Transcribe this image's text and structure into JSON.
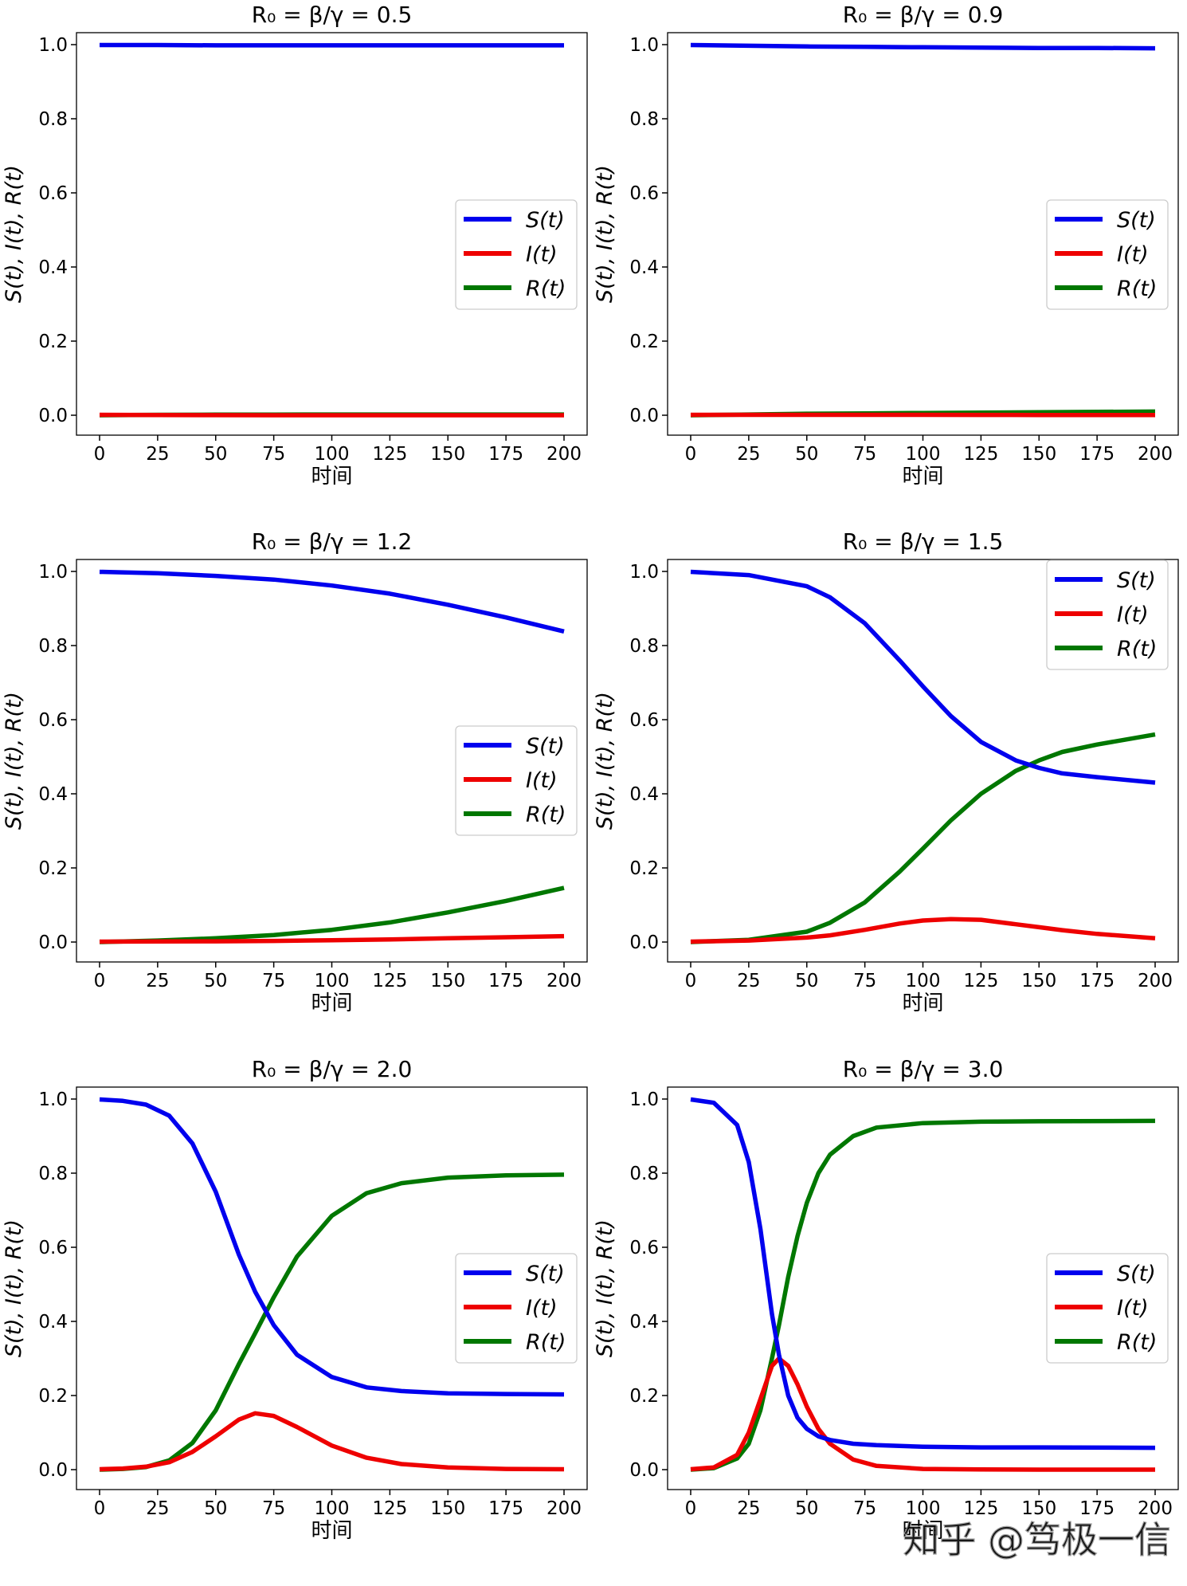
{
  "figure": {
    "xlabel": "时间",
    "ylabel": "S(t), I(t), R(t)",
    "watermark": "知乎 @笃极一信"
  },
  "colors": {
    "S": "#0000ee",
    "I": "#ee0000",
    "R": "#007700"
  },
  "chart_data": [
    {
      "type": "line",
      "title": "R₀ = β/γ = 0.5",
      "xlim": [
        0,
        200
      ],
      "ylim": [
        0,
        1.0
      ],
      "xticks": [
        "0",
        "25",
        "50",
        "75",
        "100",
        "125",
        "150",
        "175",
        "200"
      ],
      "yticks": [
        "0.0",
        "0.2",
        "0.4",
        "0.6",
        "0.8",
        "1.0"
      ],
      "legend_position": "center-right",
      "x": [
        0,
        25,
        50,
        75,
        100,
        125,
        150,
        175,
        200
      ],
      "series": [
        {
          "name": "S(t)",
          "key": "S",
          "values": [
            0.999,
            0.999,
            0.998,
            0.998,
            0.998,
            0.998,
            0.998,
            0.998,
            0.998
          ]
        },
        {
          "name": "I(t)",
          "key": "I",
          "values": [
            0.001,
            0.0005,
            0.0002,
            0.0001,
            0.0,
            0.0,
            0.0,
            0.0,
            0.0
          ]
        },
        {
          "name": "R(t)",
          "key": "R",
          "values": [
            0.0,
            0.001,
            0.0015,
            0.0018,
            0.0019,
            0.002,
            0.002,
            0.002,
            0.002
          ]
        }
      ]
    },
    {
      "type": "line",
      "title": "R₀ = β/γ = 0.9",
      "xlim": [
        0,
        200
      ],
      "ylim": [
        0,
        1.0
      ],
      "xticks": [
        "0",
        "25",
        "50",
        "75",
        "100",
        "125",
        "150",
        "175",
        "200"
      ],
      "yticks": [
        "0.0",
        "0.2",
        "0.4",
        "0.6",
        "0.8",
        "1.0"
      ],
      "legend_position": "center-right",
      "x": [
        0,
        25,
        50,
        75,
        100,
        125,
        150,
        175,
        200
      ],
      "series": [
        {
          "name": "S(t)",
          "key": "S",
          "values": [
            0.999,
            0.997,
            0.995,
            0.994,
            0.993,
            0.992,
            0.991,
            0.991,
            0.99
          ]
        },
        {
          "name": "I(t)",
          "key": "I",
          "values": [
            0.001,
            0.001,
            0.001,
            0.001,
            0.001,
            0.0008,
            0.0007,
            0.0006,
            0.0005
          ]
        },
        {
          "name": "R(t)",
          "key": "R",
          "values": [
            0.0,
            0.002,
            0.004,
            0.005,
            0.006,
            0.007,
            0.008,
            0.009,
            0.01
          ]
        }
      ]
    },
    {
      "type": "line",
      "title": "R₀ = β/γ = 1.2",
      "xlim": [
        0,
        200
      ],
      "ylim": [
        0,
        1.0
      ],
      "xticks": [
        "0",
        "25",
        "50",
        "75",
        "100",
        "125",
        "150",
        "175",
        "200"
      ],
      "yticks": [
        "0.0",
        "0.2",
        "0.4",
        "0.6",
        "0.8",
        "1.0"
      ],
      "legend_position": "center-right",
      "x": [
        0,
        25,
        50,
        75,
        100,
        125,
        150,
        175,
        200
      ],
      "series": [
        {
          "name": "S(t)",
          "key": "S",
          "values": [
            0.999,
            0.995,
            0.988,
            0.978,
            0.962,
            0.94,
            0.91,
            0.876,
            0.838
          ]
        },
        {
          "name": "I(t)",
          "key": "I",
          "values": [
            0.001,
            0.0015,
            0.002,
            0.003,
            0.005,
            0.007,
            0.01,
            0.013,
            0.016
          ]
        },
        {
          "name": "R(t)",
          "key": "R",
          "values": [
            0.0,
            0.004,
            0.01,
            0.019,
            0.033,
            0.053,
            0.08,
            0.111,
            0.146
          ]
        }
      ]
    },
    {
      "type": "line",
      "title": "R₀ = β/γ = 1.5",
      "xlim": [
        0,
        200
      ],
      "ylim": [
        0,
        1.0
      ],
      "xticks": [
        "0",
        "25",
        "50",
        "75",
        "100",
        "125",
        "150",
        "175",
        "200"
      ],
      "yticks": [
        "0.0",
        "0.2",
        "0.4",
        "0.6",
        "0.8",
        "1.0"
      ],
      "legend_position": "upper right",
      "x": [
        0,
        25,
        50,
        60,
        75,
        90,
        100,
        112,
        125,
        140,
        150,
        160,
        175,
        200
      ],
      "series": [
        {
          "name": "S(t)",
          "key": "S",
          "values": [
            0.999,
            0.99,
            0.96,
            0.93,
            0.86,
            0.76,
            0.69,
            0.61,
            0.54,
            0.49,
            0.47,
            0.455,
            0.445,
            0.43
          ]
        },
        {
          "name": "I(t)",
          "key": "I",
          "values": [
            0.001,
            0.004,
            0.012,
            0.018,
            0.033,
            0.05,
            0.058,
            0.062,
            0.06,
            0.048,
            0.04,
            0.032,
            0.022,
            0.01
          ]
        },
        {
          "name": "R(t)",
          "key": "R",
          "values": [
            0.0,
            0.006,
            0.028,
            0.052,
            0.107,
            0.19,
            0.252,
            0.328,
            0.4,
            0.462,
            0.49,
            0.513,
            0.533,
            0.56
          ]
        }
      ]
    },
    {
      "type": "line",
      "title": "R₀ = β/γ = 2.0",
      "xlim": [
        0,
        200
      ],
      "ylim": [
        0,
        1.0
      ],
      "xticks": [
        "0",
        "25",
        "50",
        "75",
        "100",
        "125",
        "150",
        "175",
        "200"
      ],
      "yticks": [
        "0.0",
        "0.2",
        "0.4",
        "0.6",
        "0.8",
        "1.0"
      ],
      "legend_position": "center-right",
      "x": [
        0,
        10,
        20,
        30,
        40,
        50,
        60,
        67,
        75,
        85,
        100,
        115,
        130,
        150,
        175,
        200
      ],
      "series": [
        {
          "name": "S(t)",
          "key": "S",
          "values": [
            0.999,
            0.995,
            0.985,
            0.955,
            0.88,
            0.75,
            0.58,
            0.48,
            0.39,
            0.31,
            0.25,
            0.222,
            0.212,
            0.206,
            0.204,
            0.203
          ]
        },
        {
          "name": "I(t)",
          "key": "I",
          "values": [
            0.001,
            0.003,
            0.008,
            0.02,
            0.048,
            0.09,
            0.135,
            0.152,
            0.145,
            0.115,
            0.065,
            0.032,
            0.015,
            0.006,
            0.002,
            0.001
          ]
        },
        {
          "name": "R(t)",
          "key": "R",
          "values": [
            0.0,
            0.002,
            0.007,
            0.025,
            0.072,
            0.16,
            0.285,
            0.368,
            0.465,
            0.575,
            0.685,
            0.746,
            0.773,
            0.788,
            0.794,
            0.796
          ]
        }
      ]
    },
    {
      "type": "line",
      "title": "R₀ = β/γ = 3.0",
      "xlim": [
        0,
        200
      ],
      "ylim": [
        0,
        1.0
      ],
      "xticks": [
        "0",
        "25",
        "50",
        "75",
        "100",
        "125",
        "150",
        "175",
        "200"
      ],
      "yticks": [
        "0.0",
        "0.2",
        "0.4",
        "0.6",
        "0.8",
        "1.0"
      ],
      "legend_position": "center-right",
      "x": [
        0,
        10,
        20,
        25,
        30,
        35,
        38,
        42,
        46,
        50,
        55,
        60,
        70,
        80,
        100,
        125,
        150,
        200
      ],
      "series": [
        {
          "name": "S(t)",
          "key": "S",
          "values": [
            0.999,
            0.99,
            0.93,
            0.83,
            0.65,
            0.42,
            0.31,
            0.2,
            0.14,
            0.11,
            0.09,
            0.08,
            0.07,
            0.066,
            0.062,
            0.06,
            0.06,
            0.059
          ]
        },
        {
          "name": "I(t)",
          "key": "I",
          "values": [
            0.001,
            0.006,
            0.04,
            0.1,
            0.19,
            0.28,
            0.3,
            0.28,
            0.23,
            0.17,
            0.11,
            0.07,
            0.027,
            0.01,
            0.002,
            0.0005,
            0.0001,
            0.0
          ]
        },
        {
          "name": "R(t)",
          "key": "R",
          "values": [
            0.0,
            0.004,
            0.03,
            0.07,
            0.16,
            0.3,
            0.39,
            0.52,
            0.63,
            0.72,
            0.8,
            0.85,
            0.9,
            0.923,
            0.935,
            0.939,
            0.94,
            0.941
          ]
        }
      ]
    }
  ]
}
